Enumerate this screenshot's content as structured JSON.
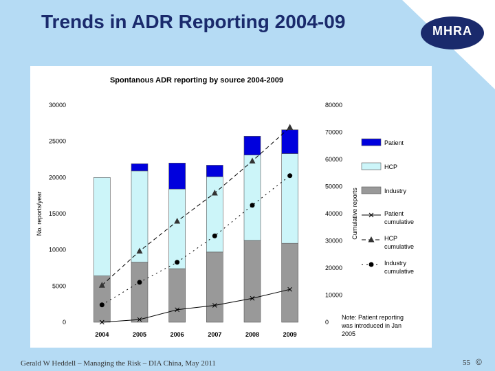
{
  "slide": {
    "title": "Trends in ADR Reporting 2004-09",
    "logo_text": "MHRA",
    "footer": "Gerald W Heddell – Managing the Risk – DIA China, May 2011",
    "page_number": "55",
    "copyright": "©"
  },
  "colors": {
    "background_band": "#b5dbf4",
    "logo_fill": "#1a2a6c",
    "patient": "#0000dd",
    "hcp": "#ccf5f9",
    "industry": "#999999"
  },
  "chart_data": {
    "type": "bar",
    "title": "Spontanous ADR reporting by source 2004-2009",
    "ylabel": "No. reports/year",
    "y2label": "Cumulative reports",
    "categories": [
      "2004",
      "2005",
      "2006",
      "2007",
      "2008",
      "2009"
    ],
    "ylim": [
      0,
      30000
    ],
    "y2lim": [
      0,
      80000
    ],
    "yticks": [
      "0",
      "5000",
      "10000",
      "15000",
      "20000",
      "25000",
      "30000"
    ],
    "y2ticks": [
      "0",
      "10000",
      "20000",
      "30000",
      "40000",
      "50000",
      "60000",
      "70000",
      "80000"
    ],
    "stacked_series": [
      {
        "name": "Industry",
        "values": [
          6400,
          8300,
          7400,
          9700,
          11300,
          10900
        ]
      },
      {
        "name": "HCP",
        "values": [
          13600,
          12600,
          11000,
          10400,
          11800,
          12400
        ]
      },
      {
        "name": "Patient",
        "values": [
          0,
          1000,
          3600,
          1600,
          2600,
          3300
        ]
      }
    ],
    "cumulative_series": [
      {
        "name": "Patient cumulative",
        "marker": "x",
        "values": [
          0,
          1000,
          4600,
          6200,
          8800,
          12100
        ]
      },
      {
        "name": "HCP cumulative",
        "marker": "triangle",
        "values": [
          13600,
          26200,
          37200,
          47600,
          59400,
          71800
        ]
      },
      {
        "name": "Industry cumulative",
        "marker": "circle",
        "values": [
          6400,
          14700,
          22100,
          31800,
          43100,
          54000
        ]
      }
    ],
    "legend": [
      {
        "label": "Patient",
        "kind": "box",
        "color": "#0000dd"
      },
      {
        "label": "HCP",
        "kind": "box",
        "color": "#ccf5f9"
      },
      {
        "label": "Industry",
        "kind": "box",
        "color": "#999999"
      },
      {
        "label_lines": [
          "Patient",
          "cumulative"
        ],
        "kind": "line-x"
      },
      {
        "label_lines": [
          "HCP",
          "cumulative"
        ],
        "kind": "line-triangle"
      },
      {
        "label_lines": [
          "Industry",
          "cumulative"
        ],
        "kind": "line-circle"
      }
    ],
    "legend_position": "right",
    "note_lines": [
      "Note: Patient reporting",
      "was introduced in Jan",
      "2005"
    ]
  }
}
